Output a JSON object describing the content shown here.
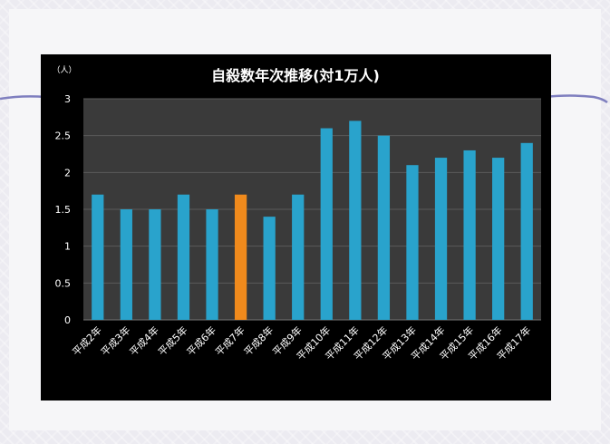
{
  "chart_data": {
    "type": "bar",
    "title": "自殺数年次推移(対1万人)",
    "ylabel": "（人）",
    "xlabel": "",
    "categories": [
      "平成2年",
      "平成3年",
      "平成4年",
      "平成5年",
      "平成6年",
      "平成7年",
      "平成8年",
      "平成9年",
      "平成10年",
      "平成11年",
      "平成12年",
      "平成13年",
      "平成14年",
      "平成15年",
      "平成16年",
      "平成17年"
    ],
    "values": [
      1.7,
      1.5,
      1.5,
      1.7,
      1.5,
      1.7,
      1.4,
      1.7,
      2.6,
      2.7,
      2.5,
      2.1,
      2.2,
      2.3,
      2.2,
      2.4
    ],
    "highlight_category": "平成7年",
    "ylim": [
      0,
      3
    ],
    "yticks": [
      "0",
      "0.5",
      "1",
      "1.5",
      "2",
      "2.5",
      "3"
    ],
    "grid": true,
    "legend": "none",
    "colors": {
      "bar": "#29a3cc",
      "highlight": "#f08a1c",
      "plot_bg": "#3a3a3a",
      "chart_bg": "#000000",
      "text": "#ffffff",
      "accent_line": "#7f7fbf"
    }
  }
}
